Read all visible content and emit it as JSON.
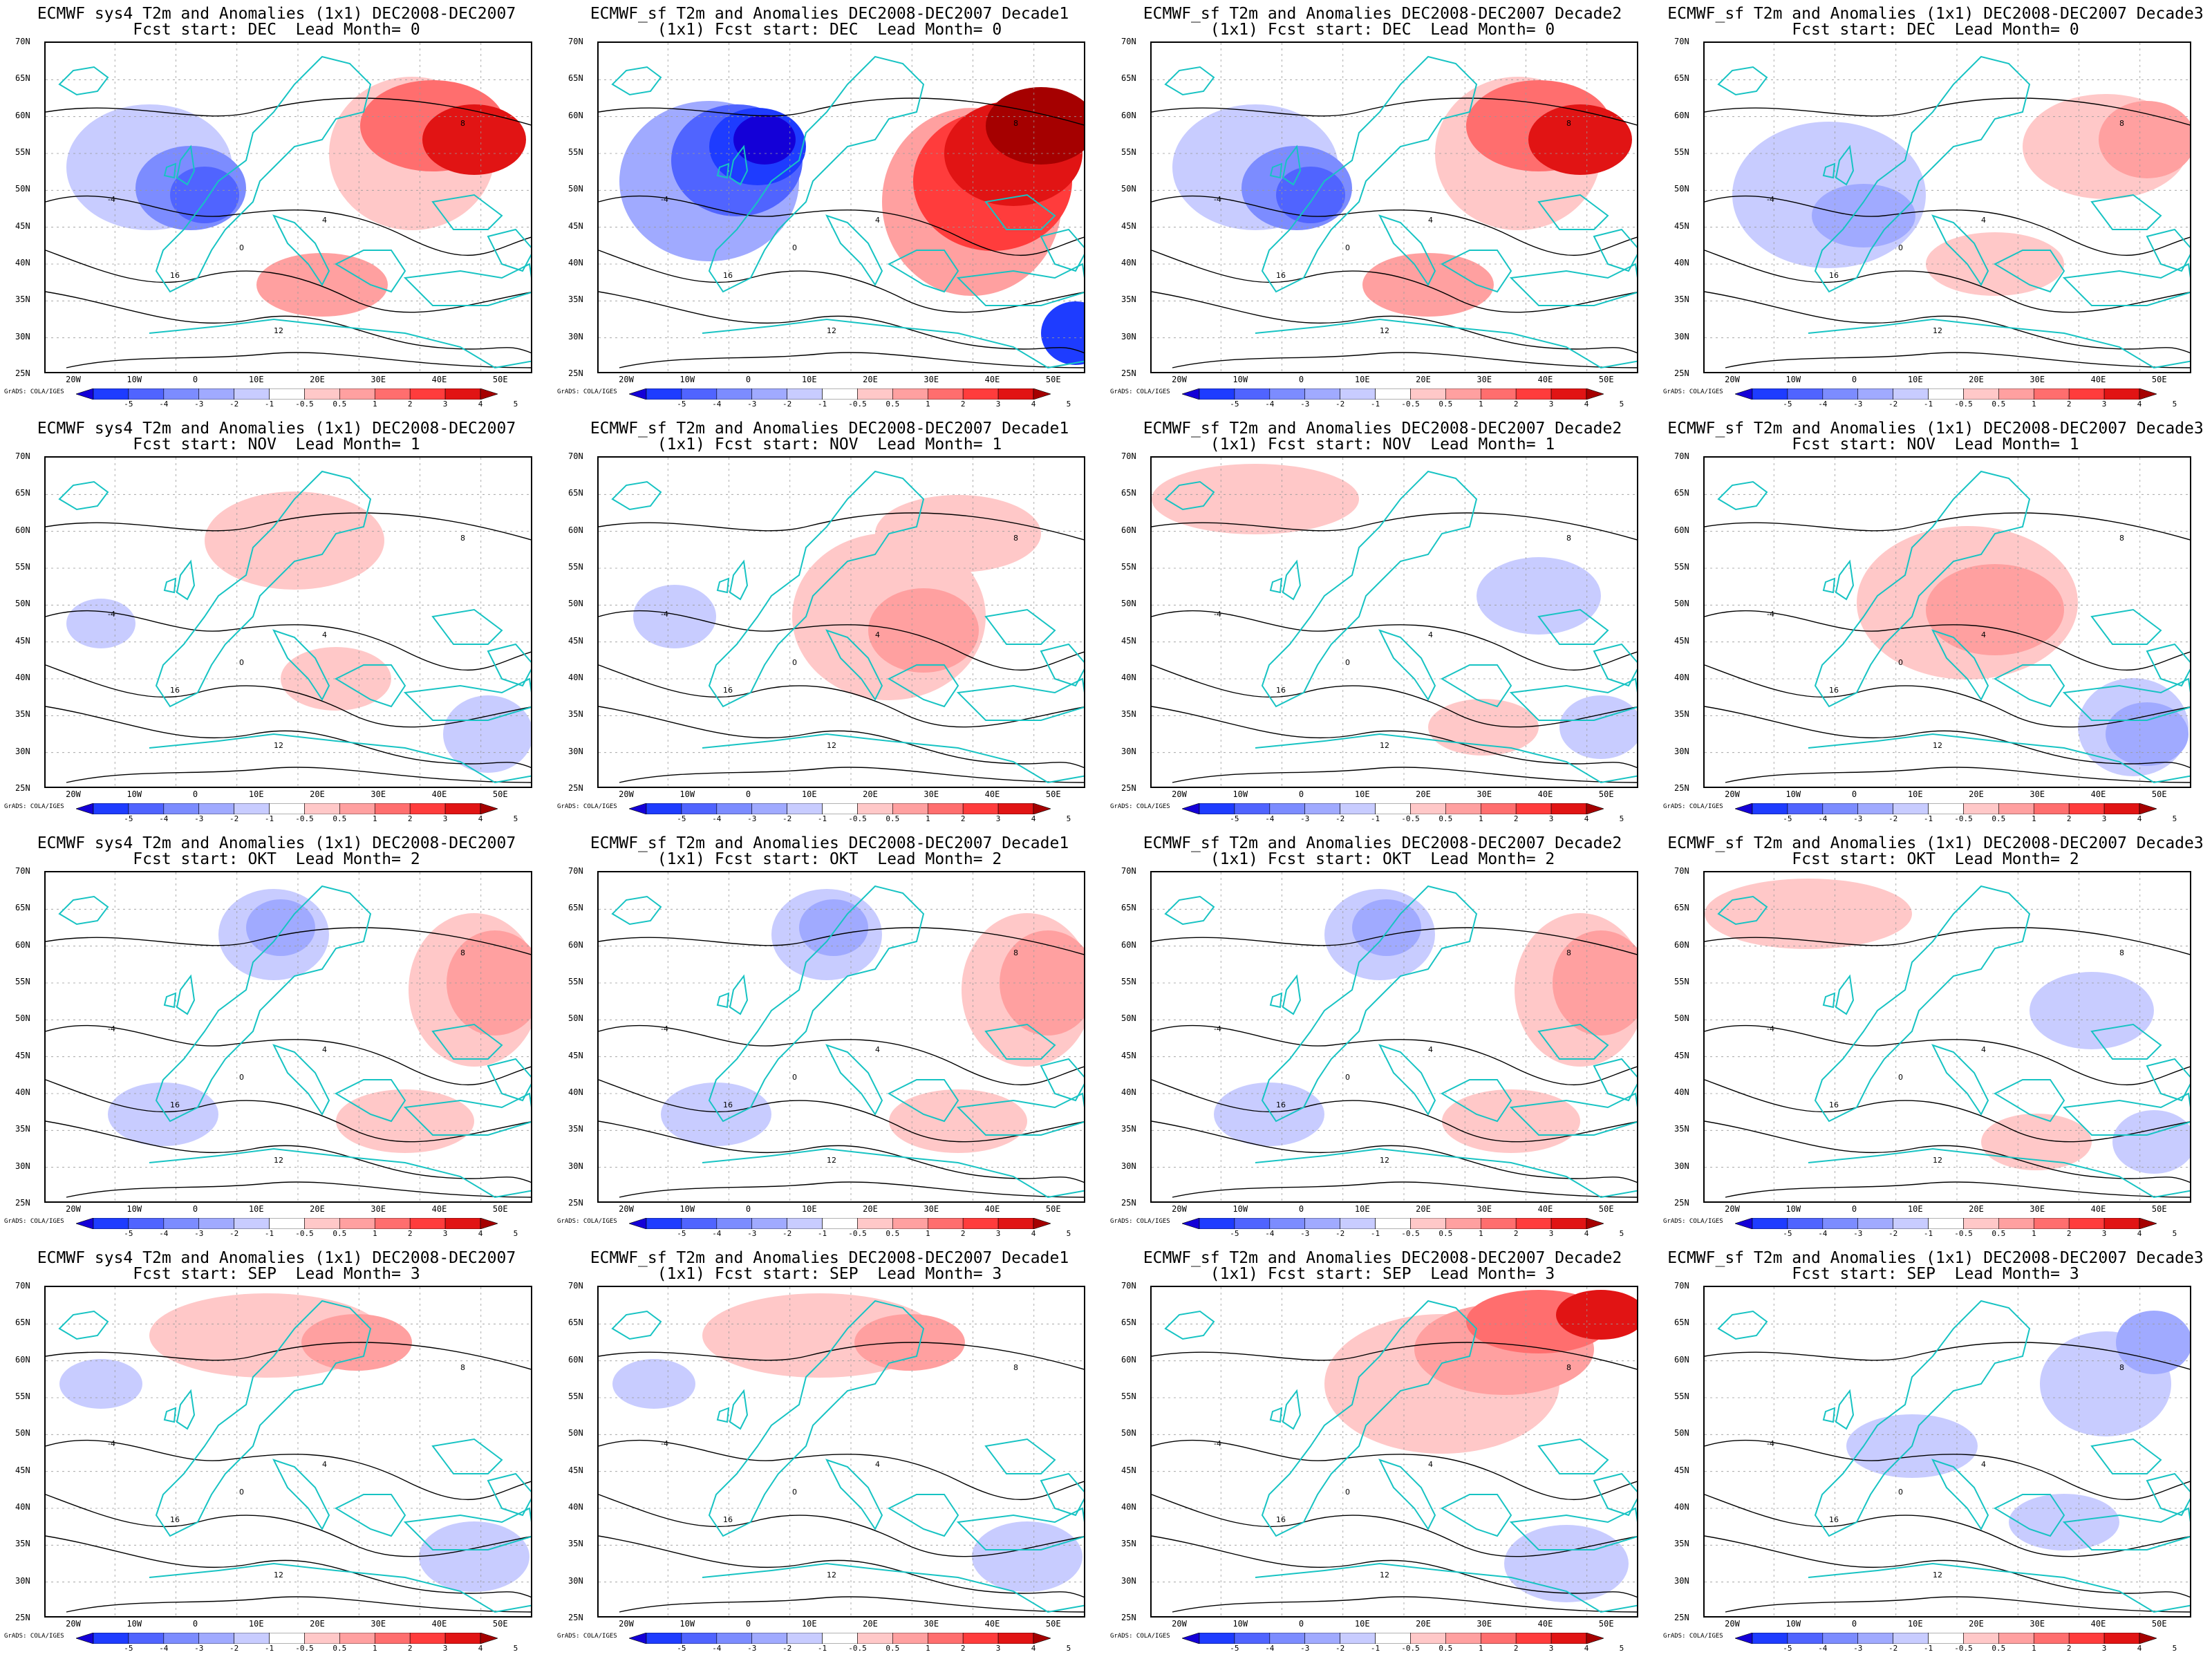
{
  "panels": [
    {
      "title1": "ECMWF sys4 T2m and Anomalies (1x1) DEC2008-DEC2007",
      "title2": "Fcst start: DEC  Lead Month= 0",
      "anom": "strong-dipole"
    },
    {
      "title1": "ECMWF_sf T2m and Anomalies DEC2008-DEC2007 Decade1",
      "title2": "(1x1) Fcst start: DEC  Lead Month= 0",
      "anom": "extreme-dipole"
    },
    {
      "title1": "ECMWF_sf T2m and Anomalies DEC2008-DEC2007 Decade2",
      "title2": "(1x1) Fcst start: DEC  Lead Month= 0",
      "anom": "strong-dipole"
    },
    {
      "title1": "ECMWF_sf T2m and Anomalies (1x1) DEC2008-DEC2007 Decade3",
      "title2": "Fcst start: DEC  Lead Month= 0",
      "anom": "mild-dipole"
    },
    {
      "title1": "ECMWF sys4 T2m and Anomalies (1x1) DEC2008-DEC2007",
      "title2": "Fcst start: NOV  Lead Month= 1",
      "anom": "weak-warm"
    },
    {
      "title1": "ECMWF_sf T2m and Anomalies DEC2008-DEC2007 Decade1",
      "title2": "(1x1) Fcst start: NOV  Lead Month= 1",
      "anom": "moderate-warm"
    },
    {
      "title1": "ECMWF_sf T2m and Anomalies DEC2008-DEC2007 Decade2",
      "title2": "(1x1) Fcst start: NOV  Lead Month= 1",
      "anom": "weak-mixed"
    },
    {
      "title1": "ECMWF_sf T2m and Anomalies (1x1) DEC2008-DEC2007 Decade3",
      "title2": "Fcst start: NOV  Lead Month= 1",
      "anom": "warm-central"
    },
    {
      "title1": "ECMWF sys4 T2m and Anomalies (1x1) DEC2008-DEC2007",
      "title2": "Fcst start: OKT  Lead Month= 2",
      "anom": "warm-east"
    },
    {
      "title1": "ECMWF_sf T2m and Anomalies DEC2008-DEC2007 Decade1",
      "title2": "(1x1) Fcst start: OKT  Lead Month= 2",
      "anom": "warm-east"
    },
    {
      "title1": "ECMWF_sf T2m and Anomalies DEC2008-DEC2007 Decade2",
      "title2": "(1x1) Fcst start: OKT  Lead Month= 2",
      "anom": "warm-east"
    },
    {
      "title1": "ECMWF_sf T2m and Anomalies (1x1) DEC2008-DEC2007 Decade3",
      "title2": "Fcst start: OKT  Lead Month= 2",
      "anom": "weak-mixed"
    },
    {
      "title1": "ECMWF sys4 T2m and Anomalies (1x1) DEC2008-DEC2007",
      "title2": "Fcst start: SEP  Lead Month= 3",
      "anom": "warm-north"
    },
    {
      "title1": "ECMWF_sf T2m and Anomalies DEC2008-DEC2007 Decade1",
      "title2": "(1x1) Fcst start: SEP  Lead Month= 3",
      "anom": "warm-north"
    },
    {
      "title1": "ECMWF_sf T2m and Anomalies DEC2008-DEC2007 Decade2",
      "title2": "(1x1) Fcst start: SEP  Lead Month= 3",
      "anom": "strong-warm-north"
    },
    {
      "title1": "ECMWF_sf T2m and Anomalies (1x1) DEC2008-DEC2007 Decade3",
      "title2": "Fcst start: SEP  Lead Month= 3",
      "anom": "cool-east"
    }
  ],
  "lat_labels": [
    "70N",
    "65N",
    "60N",
    "55N",
    "50N",
    "45N",
    "40N",
    "35N",
    "30N",
    "25N"
  ],
  "lon_labels": [
    "20W",
    "10W",
    "0",
    "10E",
    "20E",
    "30E",
    "40E",
    "50E"
  ],
  "colorbar": {
    "labels": [
      "-5",
      "-4",
      "-3",
      "-2",
      "-1",
      "-0.5",
      "0.5",
      "1",
      "2",
      "3",
      "4",
      "5"
    ],
    "colors": [
      "#1400d7",
      "#1e3cff",
      "#5064ff",
      "#7c8cff",
      "#a0aaff",
      "#c8ccff",
      "#ffffff",
      "#ffc8c8",
      "#ffa0a0",
      "#ff6e6e",
      "#ff3c3c",
      "#e11414",
      "#a50000"
    ]
  },
  "credit": "GrADS: COLA/IGES",
  "contour_labels": [
    "-4",
    "0",
    "4",
    "8",
    "12",
    "16"
  ],
  "colors": {
    "coast": "#17c3c3",
    "contour": "#000000",
    "cold": "#5064ff",
    "warm": "#ff3c3c"
  }
}
